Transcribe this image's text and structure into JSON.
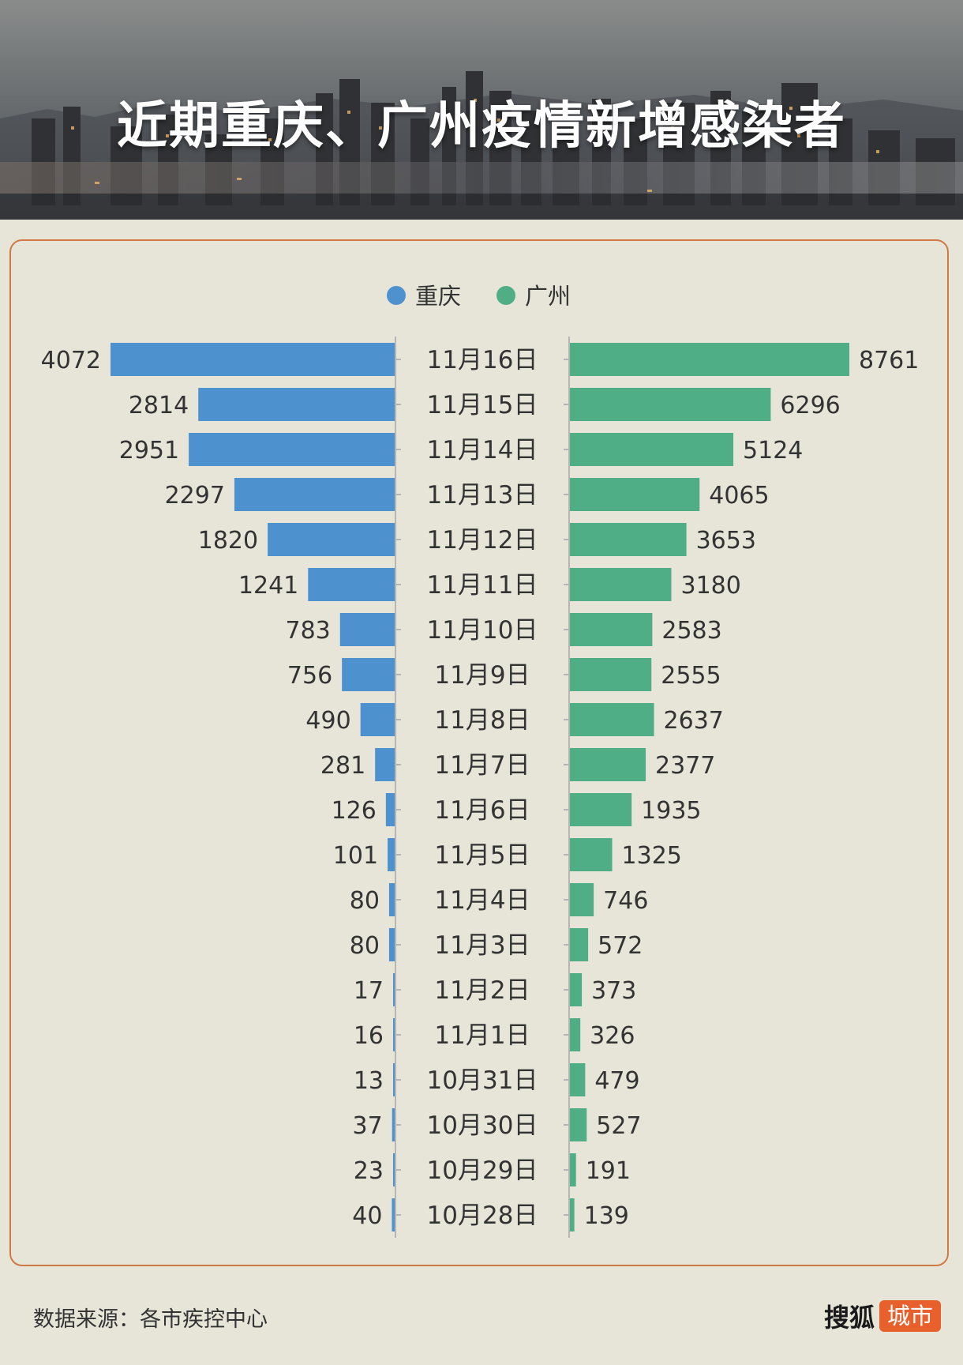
{
  "header": {
    "title": "近期重庆、广州疫情新增感染者"
  },
  "footer": {
    "source": "数据来源：各市疾控中心",
    "brand_name": "搜狐",
    "brand_badge": "城市"
  },
  "colors": {
    "chongqing": "#4e91cf",
    "guangzhou": "#4fae85",
    "frame": "#cf7a44",
    "background": "#e7e4d8",
    "brand": "#e8612c"
  },
  "chart_data": {
    "type": "bar",
    "orientation": "horizontal-butterfly",
    "legend_position": "top-center",
    "categories": [
      "11月16日",
      "11月15日",
      "11月14日",
      "11月13日",
      "11月12日",
      "11月11日",
      "11月10日",
      "11月9日",
      "11月8日",
      "11月7日",
      "11月6日",
      "11月5日",
      "11月4日",
      "11月3日",
      "11月2日",
      "11月1日",
      "10月31日",
      "10月30日",
      "10月29日",
      "10月28日"
    ],
    "series": [
      {
        "name": "重庆",
        "side": "left",
        "color": "#4e91cf",
        "values": [
          4072,
          2814,
          2951,
          2297,
          1820,
          1241,
          783,
          756,
          490,
          281,
          126,
          101,
          80,
          80,
          17,
          16,
          13,
          37,
          23,
          40
        ]
      },
      {
        "name": "广州",
        "side": "right",
        "color": "#4fae85",
        "values": [
          8761,
          6296,
          5124,
          4065,
          3653,
          3180,
          2583,
          2555,
          2637,
          2377,
          1935,
          1325,
          746,
          572,
          373,
          326,
          479,
          527,
          191,
          139
        ]
      }
    ]
  }
}
